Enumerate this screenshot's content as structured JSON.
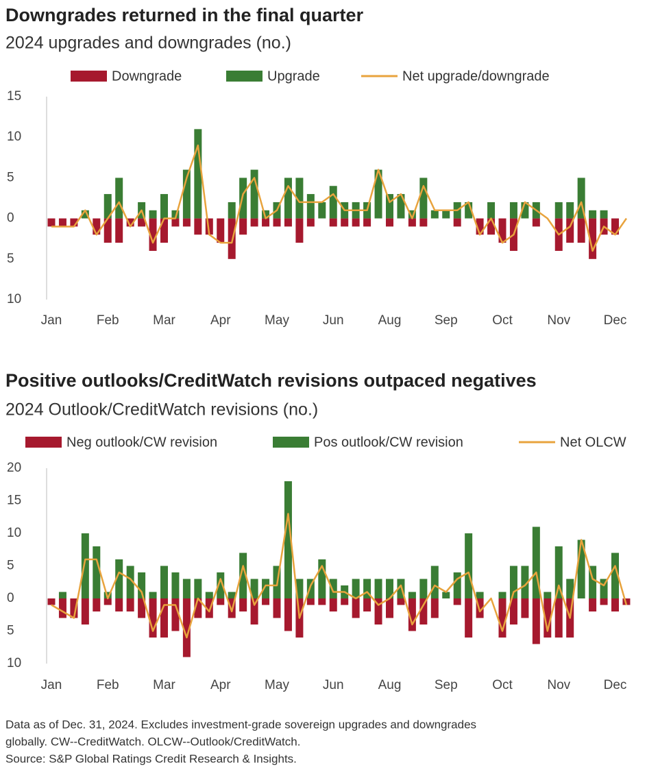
{
  "chart_data": [
    {
      "type": "bar",
      "title": "Downgrades returned in the final quarter",
      "subtitle": "2024 upgrades and downgrades (no.)",
      "categories": [
        "Jan",
        null,
        null,
        null,
        null,
        "Feb",
        null,
        null,
        null,
        null,
        "Mar",
        null,
        null,
        null,
        null,
        "Apr",
        null,
        null,
        null,
        null,
        "May",
        null,
        null,
        null,
        null,
        "Jun",
        null,
        null,
        null,
        null,
        "Aug",
        null,
        null,
        null,
        null,
        "Sep",
        null,
        null,
        null,
        null,
        "Oct",
        null,
        null,
        null,
        null,
        "Nov",
        null,
        null,
        null,
        null,
        "Dec",
        null
      ],
      "series": [
        {
          "name": "Downgrade",
          "color": "#a6192e",
          "values": [
            -1,
            -1,
            -1,
            0,
            -2,
            -3,
            -3,
            -1,
            -1,
            -4,
            -3,
            -1,
            -1,
            -2,
            -2,
            -3,
            -5,
            -2,
            -1,
            -1,
            -1,
            -1,
            -3,
            -1,
            0,
            -1,
            -1,
            -1,
            -1,
            0,
            -1,
            0,
            -1,
            -1,
            0,
            0,
            -1,
            0,
            -2,
            -2,
            -3,
            -4,
            0,
            -1,
            0,
            -4,
            -3,
            -3,
            -5,
            -2,
            -2,
            0
          ]
        },
        {
          "name": "Upgrade",
          "color": "#3a7d34",
          "values": [
            0,
            0,
            0,
            1,
            0,
            3,
            5,
            0,
            2,
            1,
            3,
            1,
            6,
            11,
            0,
            0,
            2,
            5,
            6,
            1,
            2,
            5,
            5,
            3,
            2,
            4,
            2,
            2,
            2,
            6,
            3,
            3,
            1,
            5,
            1,
            1,
            2,
            2,
            0,
            2,
            0,
            2,
            2,
            2,
            0,
            2,
            2,
            5,
            1,
            1,
            0,
            0
          ]
        },
        {
          "name": "Net upgrade/downgrade",
          "color": "#e8a33d",
          "type": "line",
          "values": [
            -1,
            -1,
            -1,
            1,
            -2,
            0,
            2,
            -1,
            1,
            -3,
            0,
            0,
            5,
            9,
            -2,
            -3,
            -3,
            3,
            5,
            0,
            1,
            4,
            2,
            2,
            2,
            3,
            1,
            1,
            1,
            6,
            2,
            3,
            0,
            4,
            1,
            1,
            1,
            2,
            -2,
            0,
            -3,
            -2,
            2,
            1,
            0,
            -2,
            -1,
            2,
            -4,
            -1,
            -2,
            0
          ]
        }
      ],
      "ylim": [
        -10,
        15
      ],
      "yticks": [
        15,
        10,
        5,
        0,
        {
          "value": -5,
          "label": "5"
        },
        {
          "value": -10,
          "label": "10"
        }
      ]
    },
    {
      "type": "bar",
      "title": "Positive outlooks/CreditWatch revisions outpaced negatives",
      "subtitle": "2024 Outlook/CreditWatch revisions (no.)",
      "categories": [
        "Jan",
        null,
        null,
        null,
        null,
        "Feb",
        null,
        null,
        null,
        null,
        "Mar",
        null,
        null,
        null,
        null,
        "Apr",
        null,
        null,
        null,
        null,
        "May",
        null,
        null,
        null,
        null,
        "Jun",
        null,
        null,
        null,
        null,
        "Aug",
        null,
        null,
        null,
        null,
        "Sep",
        null,
        null,
        null,
        null,
        "Oct",
        null,
        null,
        null,
        null,
        "Nov",
        null,
        null,
        null,
        null,
        "Dec",
        null
      ],
      "series": [
        {
          "name": "Neg outlook/CW revision",
          "color": "#a6192e",
          "values": [
            -1,
            -3,
            -3,
            -4,
            -2,
            -1,
            -2,
            -2,
            -3,
            -6,
            -6,
            -5,
            -9,
            -3,
            -3,
            -1,
            -3,
            -2,
            -4,
            -1,
            -3,
            -5,
            -6,
            -1,
            -1,
            -2,
            -1,
            -3,
            -2,
            -4,
            -3,
            -1,
            -5,
            -4,
            -3,
            0,
            -1,
            -6,
            -3,
            0,
            -6,
            -4,
            -3,
            -7,
            -6,
            -6,
            -6,
            0,
            -2,
            -1,
            -2,
            -1
          ]
        },
        {
          "name": "Pos outlook/CW revision",
          "color": "#3a7d34",
          "values": [
            0,
            1,
            0,
            10,
            8,
            1,
            6,
            5,
            4,
            1,
            5,
            4,
            3,
            3,
            1,
            4,
            1,
            7,
            3,
            3,
            5,
            18,
            3,
            3,
            6,
            3,
            2,
            3,
            3,
            3,
            3,
            3,
            1,
            3,
            5,
            1,
            4,
            10,
            1,
            0,
            1,
            5,
            5,
            11,
            1,
            8,
            3,
            9,
            5,
            3,
            7,
            0
          ]
        },
        {
          "name": "Net OLCW",
          "color": "#e8a33d",
          "type": "line",
          "values": [
            -1,
            -2,
            -3,
            6,
            6,
            0,
            4,
            3,
            1,
            -5,
            -1,
            -1,
            -6,
            0,
            -2,
            3,
            -2,
            5,
            -1,
            2,
            2,
            13,
            -3,
            2,
            5,
            1,
            1,
            0,
            1,
            -1,
            0,
            2,
            -4,
            -1,
            2,
            1,
            3,
            4,
            -2,
            0,
            -5,
            1,
            2,
            4,
            -5,
            2,
            -3,
            9,
            3,
            2,
            5,
            -1
          ]
        }
      ],
      "ylim": [
        -10,
        20
      ],
      "yticks": [
        20,
        15,
        10,
        5,
        0,
        {
          "value": -5,
          "label": "5"
        },
        {
          "value": -10,
          "label": "10"
        }
      ]
    }
  ],
  "footnote": [
    "Data as of Dec. 31, 2024. Excludes investment-grade sovereign upgrades and downgrades",
    "globally. CW--CreditWatch. OLCW--Outlook/CreditWatch.",
    "Source: S&P Global Ratings Credit Research & Insights."
  ]
}
